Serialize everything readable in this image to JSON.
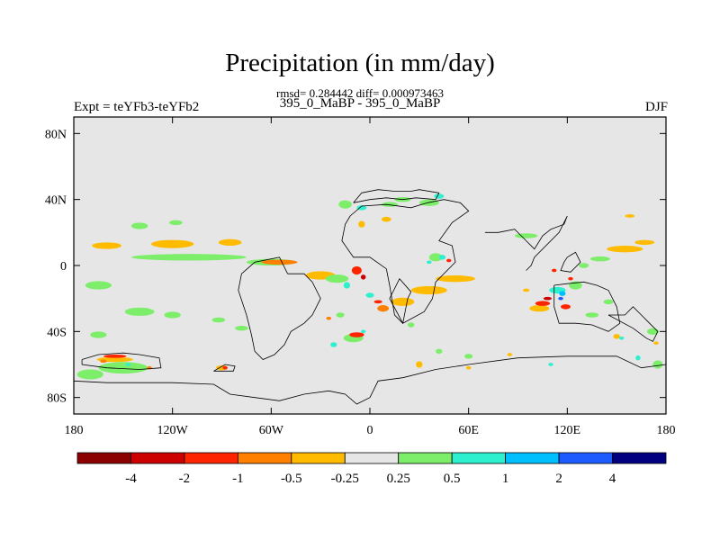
{
  "header": {
    "title": "Precipitation (in mm/day)",
    "stats": "rmsd= 0.284442 diff= 0.000973463",
    "center_label": "395_0_MaBP - 395_0_MaBP",
    "left_label": "Expt = teYFb3-teYFb2",
    "right_label": "DJF"
  },
  "chart_data": {
    "type": "heatmap",
    "title": "Precipitation (in mm/day)",
    "subtitle": "395_0_MaBP - 395_0_MaBP",
    "units": "mm/day",
    "background_color": "#e6e6e6",
    "xlim": [
      -180,
      180
    ],
    "ylim": [
      -90,
      90
    ],
    "x_ticks": [
      {
        "value": -180,
        "label": "180"
      },
      {
        "value": -120,
        "label": "120W"
      },
      {
        "value": -60,
        "label": "60W"
      },
      {
        "value": 0,
        "label": "0"
      },
      {
        "value": 60,
        "label": "60E"
      },
      {
        "value": 120,
        "label": "120E"
      },
      {
        "value": 180,
        "label": "180"
      }
    ],
    "y_ticks": [
      {
        "value": 80,
        "label": "80N"
      },
      {
        "value": 40,
        "label": "40N"
      },
      {
        "value": 0,
        "label": "0"
      },
      {
        "value": -40,
        "label": "40S"
      },
      {
        "value": -80,
        "label": "80S"
      }
    ],
    "colorbar": {
      "colors": [
        "#8b0000",
        "#cd0000",
        "#ff2400",
        "#ff7f00",
        "#ffbb00",
        "#e6e6e6",
        "#7cee6a",
        "#2ef0cf",
        "#00bfff",
        "#1e5bff",
        "#000080"
      ],
      "tick_labels": [
        "-4",
        "-2",
        "-1",
        "-0.5",
        "-0.25",
        "0.25",
        "0.5",
        "1",
        "2",
        "4"
      ]
    },
    "anomalies": [
      {
        "lon": -160,
        "lat": 12,
        "w": 18,
        "h": 4,
        "level": -0.3
      },
      {
        "lon": -120,
        "lat": 13,
        "w": 26,
        "h": 5,
        "level": -0.3
      },
      {
        "lon": -85,
        "lat": 14,
        "w": 14,
        "h": 4,
        "level": -0.3
      },
      {
        "lon": -110,
        "lat": 5,
        "w": 70,
        "h": 4,
        "level": 0.3
      },
      {
        "lon": -60,
        "lat": 2,
        "w": 30,
        "h": 4,
        "level": 0.3
      },
      {
        "lon": -55,
        "lat": 2,
        "w": 22,
        "h": 3,
        "level": -0.7
      },
      {
        "lon": -30,
        "lat": -6,
        "w": 18,
        "h": 5,
        "level": -0.3
      },
      {
        "lon": -140,
        "lat": 24,
        "w": 10,
        "h": 4,
        "level": 0.3
      },
      {
        "lon": -118,
        "lat": 26,
        "w": 8,
        "h": 3,
        "level": 0.3
      },
      {
        "lon": -165,
        "lat": -12,
        "w": 16,
        "h": 5,
        "level": 0.3
      },
      {
        "lon": -140,
        "lat": -28,
        "w": 18,
        "h": 5,
        "level": 0.3
      },
      {
        "lon": -120,
        "lat": -30,
        "w": 10,
        "h": 4,
        "level": 0.3
      },
      {
        "lon": -92,
        "lat": -33,
        "w": 8,
        "h": 3,
        "level": 0.3
      },
      {
        "lon": -78,
        "lat": -38,
        "w": 8,
        "h": 3,
        "level": 0.3
      },
      {
        "lon": -165,
        "lat": -42,
        "w": 10,
        "h": 4,
        "level": 0.3
      },
      {
        "lon": -170,
        "lat": -66,
        "w": 16,
        "h": 6,
        "level": 0.3
      },
      {
        "lon": -150,
        "lat": -62,
        "w": 30,
        "h": 7,
        "level": 0.3
      },
      {
        "lon": -155,
        "lat": -57,
        "w": 22,
        "h": 3,
        "level": -0.3
      },
      {
        "lon": -155,
        "lat": -55,
        "w": 14,
        "h": 2,
        "level": -1.5
      },
      {
        "lon": -162,
        "lat": -58,
        "w": 4,
        "h": 2,
        "level": -0.7
      },
      {
        "lon": -147,
        "lat": -60,
        "w": 3,
        "h": 2,
        "level": 0.7
      },
      {
        "lon": -134,
        "lat": -62,
        "w": 3,
        "h": 2,
        "level": -0.7
      },
      {
        "lon": -90,
        "lat": -62,
        "w": 7,
        "h": 3,
        "level": -0.3
      },
      {
        "lon": -88,
        "lat": -62,
        "w": 3,
        "h": 2,
        "level": -1.5
      },
      {
        "lon": -15,
        "lat": 37,
        "w": 8,
        "h": 5,
        "level": 0.3
      },
      {
        "lon": -5,
        "lat": 35,
        "w": 6,
        "h": 3,
        "level": 0.7
      },
      {
        "lon": 12,
        "lat": 37,
        "w": 10,
        "h": 3,
        "level": 0.3
      },
      {
        "lon": 20,
        "lat": 40,
        "w": 10,
        "h": 3,
        "level": 0.3
      },
      {
        "lon": 36,
        "lat": 38,
        "w": 12,
        "h": 4,
        "level": 0.3
      },
      {
        "lon": 42,
        "lat": 42,
        "w": 6,
        "h": 3,
        "level": 0.7
      },
      {
        "lon": -5,
        "lat": 25,
        "w": 4,
        "h": 4,
        "level": -0.3
      },
      {
        "lon": 10,
        "lat": 28,
        "w": 6,
        "h": 3,
        "level": -0.3
      },
      {
        "lon": 40,
        "lat": 5,
        "w": 8,
        "h": 5,
        "level": 0.3
      },
      {
        "lon": 44,
        "lat": 5,
        "w": 4,
        "h": 3,
        "level": 0.7
      },
      {
        "lon": 48,
        "lat": 3,
        "w": 3,
        "h": 2,
        "level": -1.5
      },
      {
        "lon": 36,
        "lat": 2,
        "w": 3,
        "h": 2,
        "level": 0.7
      },
      {
        "lon": 52,
        "lat": -8,
        "w": 24,
        "h": 4,
        "level": -0.3
      },
      {
        "lon": 36,
        "lat": -15,
        "w": 22,
        "h": 5,
        "level": -0.3
      },
      {
        "lon": 20,
        "lat": -22,
        "w": 14,
        "h": 5,
        "level": -0.3
      },
      {
        "lon": 8,
        "lat": -26,
        "w": 7,
        "h": 4,
        "level": -0.7
      },
      {
        "lon": 5,
        "lat": -22,
        "w": 5,
        "h": 2,
        "level": -1.5
      },
      {
        "lon": 0,
        "lat": -18,
        "w": 5,
        "h": 3,
        "level": 0.7
      },
      {
        "lon": -8,
        "lat": -3,
        "w": 6,
        "h": 5,
        "level": -1.5
      },
      {
        "lon": -4,
        "lat": -7,
        "w": 3,
        "h": 3,
        "level": -3
      },
      {
        "lon": -20,
        "lat": -8,
        "w": 14,
        "h": 5,
        "level": 0.3
      },
      {
        "lon": -14,
        "lat": -12,
        "w": 4,
        "h": 4,
        "level": 0.7
      },
      {
        "lon": -18,
        "lat": -30,
        "w": 5,
        "h": 3,
        "level": 0.3
      },
      {
        "lon": -25,
        "lat": -32,
        "w": 3,
        "h": 2,
        "level": -0.7
      },
      {
        "lon": -10,
        "lat": -44,
        "w": 12,
        "h": 5,
        "level": 0.3
      },
      {
        "lon": -8,
        "lat": -42,
        "w": 9,
        "h": 3,
        "level": -1.5
      },
      {
        "lon": -4,
        "lat": -40,
        "w": 3,
        "h": 2,
        "level": 0.7
      },
      {
        "lon": -22,
        "lat": -48,
        "w": 4,
        "h": 3,
        "level": 0.7
      },
      {
        "lon": 25,
        "lat": -36,
        "w": 4,
        "h": 3,
        "level": 0.3
      },
      {
        "lon": 42,
        "lat": -52,
        "w": 4,
        "h": 3,
        "level": 0.3
      },
      {
        "lon": 30,
        "lat": -60,
        "w": 4,
        "h": 4,
        "level": -0.3
      },
      {
        "lon": 60,
        "lat": -55,
        "w": 5,
        "h": 3,
        "level": 0.3
      },
      {
        "lon": 60,
        "lat": -62,
        "w": 3,
        "h": 2,
        "level": -0.3
      },
      {
        "lon": 95,
        "lat": -15,
        "w": 4,
        "h": 2,
        "level": -0.3
      },
      {
        "lon": 103,
        "lat": -26,
        "w": 12,
        "h": 4,
        "level": -0.3
      },
      {
        "lon": 105,
        "lat": -23,
        "w": 9,
        "h": 3,
        "level": -1.5
      },
      {
        "lon": 108,
        "lat": -20,
        "w": 5,
        "h": 2,
        "level": -3
      },
      {
        "lon": 114,
        "lat": -15,
        "w": 10,
        "h": 4,
        "level": 0.7
      },
      {
        "lon": 117,
        "lat": -17,
        "w": 4,
        "h": 3,
        "level": 1.5
      },
      {
        "lon": 116,
        "lat": -20,
        "w": 3,
        "h": 2,
        "level": 3
      },
      {
        "lon": 119,
        "lat": -25,
        "w": 6,
        "h": 3,
        "level": -1.5
      },
      {
        "lon": 125,
        "lat": -12,
        "w": 8,
        "h": 5,
        "level": 0.3
      },
      {
        "lon": 122,
        "lat": -8,
        "w": 3,
        "h": 2,
        "level": -1.5
      },
      {
        "lon": 112,
        "lat": -3,
        "w": 3,
        "h": 2,
        "level": -1.5
      },
      {
        "lon": 130,
        "lat": 0,
        "w": 6,
        "h": 3,
        "level": 0.3
      },
      {
        "lon": 155,
        "lat": 10,
        "w": 22,
        "h": 4,
        "level": -0.3
      },
      {
        "lon": 167,
        "lat": 14,
        "w": 12,
        "h": 3,
        "level": -0.3
      },
      {
        "lon": 140,
        "lat": 4,
        "w": 12,
        "h": 3,
        "level": 0.3
      },
      {
        "lon": 158,
        "lat": 30,
        "w": 6,
        "h": 2,
        "level": -0.3
      },
      {
        "lon": 95,
        "lat": 18,
        "w": 14,
        "h": 3,
        "level": 0.3
      },
      {
        "lon": 135,
        "lat": -30,
        "w": 8,
        "h": 3,
        "level": 0.3
      },
      {
        "lon": 145,
        "lat": -22,
        "w": 6,
        "h": 3,
        "level": 0.3
      },
      {
        "lon": 150,
        "lat": -43,
        "w": 4,
        "h": 3,
        "level": -0.3
      },
      {
        "lon": 153,
        "lat": -44,
        "w": 3,
        "h": 2,
        "level": 0.7
      },
      {
        "lon": 163,
        "lat": -56,
        "w": 3,
        "h": 3,
        "level": 0.7
      },
      {
        "lon": 175,
        "lat": -60,
        "w": 6,
        "h": 5,
        "level": 0.3
      },
      {
        "lon": 172,
        "lat": -40,
        "w": 7,
        "h": 4,
        "level": 0.3
      },
      {
        "lon": 174,
        "lat": -47,
        "w": 3,
        "h": 2,
        "level": -0.3
      },
      {
        "lon": 85,
        "lat": -54,
        "w": 3,
        "h": 2,
        "level": -0.3
      },
      {
        "lon": 110,
        "lat": -60,
        "w": 3,
        "h": 2,
        "level": 0.7
      }
    ],
    "coastlines": [
      [
        [
          -175,
          -57
        ],
        [
          -165,
          -54
        ],
        [
          -150,
          -53
        ],
        [
          -140,
          -54
        ],
        [
          -128,
          -56
        ],
        [
          -127,
          -62
        ],
        [
          -140,
          -63
        ],
        [
          -160,
          -62
        ],
        [
          -175,
          -60
        ],
        [
          -175,
          -57
        ]
      ],
      [
        [
          -95,
          -64
        ],
        [
          -88,
          -60
        ],
        [
          -82,
          -61
        ],
        [
          -83,
          -64
        ],
        [
          -95,
          -64
        ]
      ],
      [
        [
          -180,
          -70
        ],
        [
          -160,
          -71
        ],
        [
          -140,
          -71
        ],
        [
          -120,
          -71
        ],
        [
          -95,
          -72
        ],
        [
          -85,
          -78
        ],
        [
          -70,
          -80
        ],
        [
          -55,
          -82
        ],
        [
          -40,
          -78
        ],
        [
          -25,
          -76
        ],
        [
          -15,
          -78
        ],
        [
          -8,
          -84
        ],
        [
          0,
          -80
        ],
        [
          5,
          -70
        ],
        [
          20,
          -68
        ],
        [
          40,
          -63
        ],
        [
          60,
          -60
        ],
        [
          90,
          -56
        ],
        [
          120,
          -55
        ],
        [
          150,
          -55
        ],
        [
          165,
          -62
        ],
        [
          180,
          -60
        ]
      ],
      [
        [
          -50,
          -5
        ],
        [
          -40,
          -5
        ],
        [
          -35,
          -10
        ],
        [
          -30,
          -20
        ],
        [
          -35,
          -30
        ],
        [
          -40,
          -35
        ],
        [
          -48,
          -40
        ],
        [
          -52,
          -48
        ],
        [
          -58,
          -54
        ],
        [
          -65,
          -57
        ],
        [
          -70,
          -52
        ],
        [
          -72,
          -42
        ],
        [
          -75,
          -30
        ],
        [
          -80,
          -15
        ],
        [
          -78,
          -5
        ],
        [
          -70,
          2
        ],
        [
          -55,
          5
        ],
        [
          -50,
          -5
        ]
      ],
      [
        [
          -12,
          30
        ],
        [
          -5,
          36
        ],
        [
          10,
          37
        ],
        [
          25,
          35
        ],
        [
          35,
          38
        ],
        [
          45,
          40
        ],
        [
          55,
          38
        ],
        [
          60,
          33
        ],
        [
          50,
          26
        ],
        [
          42,
          15
        ],
        [
          50,
          12
        ],
        [
          52,
          2
        ],
        [
          40,
          -10
        ],
        [
          38,
          -20
        ],
        [
          33,
          -28
        ],
        [
          20,
          -35
        ],
        [
          15,
          -30
        ],
        [
          12,
          -12
        ],
        [
          10,
          -2
        ],
        [
          0,
          5
        ],
        [
          -10,
          5
        ],
        [
          -17,
          15
        ],
        [
          -15,
          25
        ],
        [
          -12,
          30
        ]
      ],
      [
        [
          -10,
          38
        ],
        [
          -5,
          44
        ],
        [
          5,
          46
        ],
        [
          15,
          45
        ],
        [
          25,
          45
        ],
        [
          30,
          46
        ],
        [
          42,
          44
        ],
        [
          40,
          40
        ],
        [
          28,
          41
        ],
        [
          20,
          40
        ],
        [
          10,
          41
        ],
        [
          0,
          40
        ],
        [
          -10,
          38
        ]
      ],
      [
        [
          25,
          -16
        ],
        [
          23,
          -20
        ],
        [
          20,
          -35
        ],
        [
          12,
          -20
        ],
        [
          18,
          -8
        ],
        [
          25,
          -16
        ]
      ],
      [
        [
          70,
          20
        ],
        [
          78,
          20
        ],
        [
          88,
          22
        ],
        [
          95,
          15
        ],
        [
          100,
          10
        ],
        [
          105,
          18
        ],
        [
          110,
          22
        ],
        [
          118,
          25
        ],
        [
          120,
          30
        ],
        [
          115,
          20
        ],
        [
          100,
          5
        ],
        [
          98,
          0
        ],
        [
          95,
          -3
        ]
      ],
      [
        [
          112,
          -12
        ],
        [
          120,
          -11
        ],
        [
          130,
          -10
        ],
        [
          138,
          -12
        ],
        [
          145,
          -15
        ],
        [
          150,
          -25
        ],
        [
          152,
          -35
        ],
        [
          145,
          -40
        ],
        [
          135,
          -36
        ],
        [
          125,
          -35
        ],
        [
          115,
          -35
        ],
        [
          112,
          -25
        ],
        [
          112,
          -12
        ]
      ],
      [
        [
          145,
          -30
        ],
        [
          155,
          -30
        ],
        [
          160,
          -25
        ],
        [
          165,
          -30
        ],
        [
          170,
          -35
        ],
        [
          175,
          -40
        ],
        [
          172,
          -46
        ],
        [
          168,
          -44
        ],
        [
          160,
          -38
        ],
        [
          145,
          -30
        ]
      ],
      [
        [
          120,
          5
        ],
        [
          125,
          8
        ],
        [
          128,
          2
        ],
        [
          122,
          -4
        ],
        [
          116,
          -3
        ],
        [
          118,
          2
        ],
        [
          120,
          5
        ]
      ]
    ]
  }
}
